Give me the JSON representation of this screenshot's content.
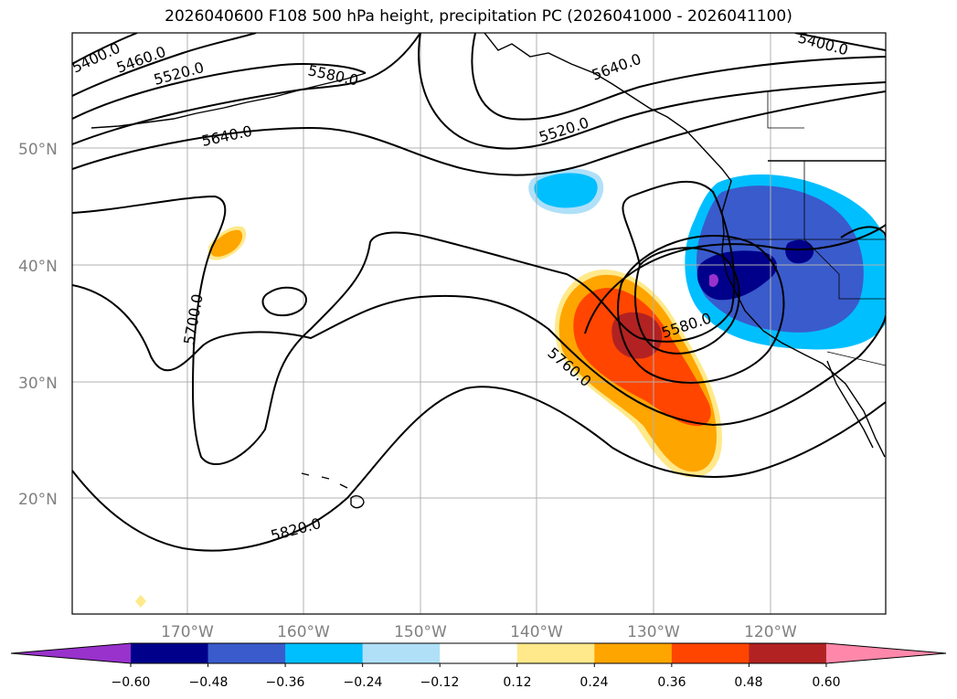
{
  "title": "2026040600 F108 500 hPa height, precipitation PC (2026041000 - 2026041100)",
  "lat_labels": [
    "50°N",
    "40°N",
    "30°N",
    "20°N"
  ],
  "lon_labels": [
    "170°W",
    "160°W",
    "150°W",
    "140°W",
    "130°W",
    "120°W"
  ],
  "contour_labels": [
    "5400.0",
    "5460.0",
    "5520.0",
    "5580.0",
    "5640.0",
    "5520.0",
    "5640.0",
    "5400.0",
    "5700.0",
    "5580.0",
    "5760.0",
    "5820.0"
  ],
  "colorbar": {
    "tick_labels": [
      "−0.60",
      "−0.48",
      "−0.36",
      "−0.24",
      "−0.12",
      "0.12",
      "0.24",
      "0.36",
      "0.48",
      "0.60"
    ],
    "colors": [
      "#9932cc",
      "#00008b",
      "#3a5bcc",
      "#00bfff",
      "#b0e0f8",
      "#ffffff",
      "#ffe98a",
      "#ffa500",
      "#ff4500",
      "#b22222",
      "#ff88aa"
    ]
  }
}
